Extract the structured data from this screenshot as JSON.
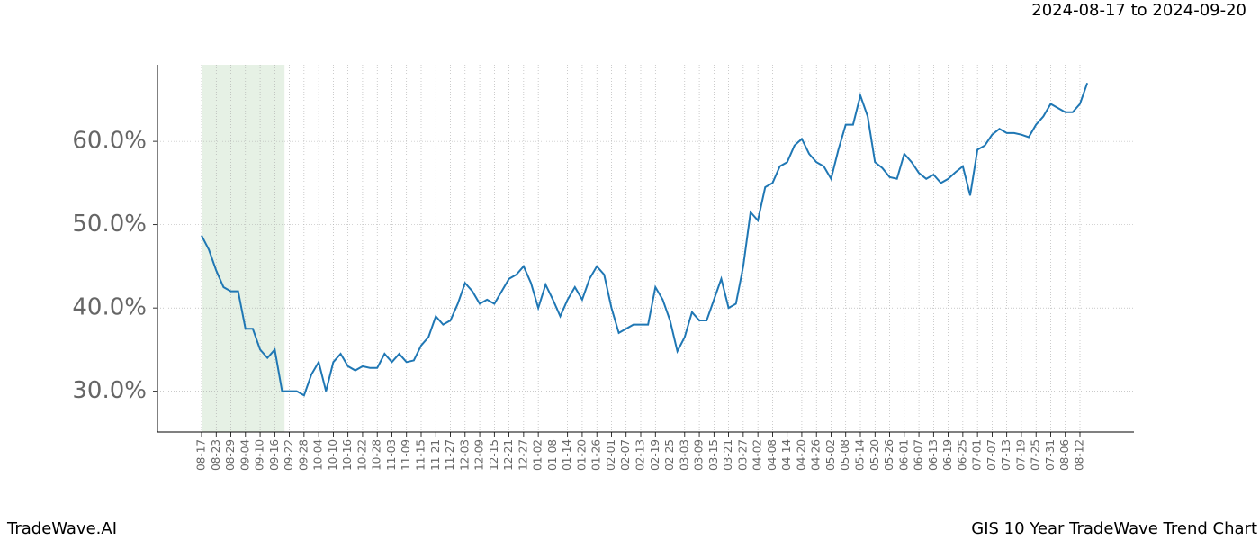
{
  "chart_data": {
    "type": "line",
    "title": "2024-08-17 to 2024-09-20",
    "footer_left": "TradeWave.AI",
    "footer_right": "GIS 10 Year TradeWave Trend Chart",
    "categories": [
      "08-17",
      null,
      "08-23",
      null,
      "08-29",
      null,
      "09-04",
      null,
      "09-10",
      null,
      "09-16",
      null,
      "09-22",
      null,
      "09-28",
      null,
      "10-04",
      null,
      "10-10",
      null,
      "10-16",
      null,
      "10-22",
      null,
      "10-28",
      null,
      "11-03",
      null,
      "11-09",
      null,
      "11-15",
      null,
      "11-21",
      null,
      "11-27",
      null,
      "12-03",
      null,
      "12-09",
      null,
      "12-15",
      null,
      "12-21",
      null,
      "12-27",
      null,
      "01-02",
      null,
      "01-08",
      null,
      "01-14",
      null,
      "01-20",
      null,
      "01-26",
      null,
      "02-01",
      null,
      "02-07",
      null,
      "02-13",
      null,
      "02-19",
      null,
      "02-25",
      null,
      "03-03",
      null,
      "03-09",
      null,
      "03-15",
      null,
      "03-21",
      null,
      "03-27",
      null,
      "04-02",
      null,
      "04-08",
      null,
      "04-14",
      null,
      "04-20",
      null,
      "04-26",
      null,
      "05-02",
      null,
      "05-08",
      null,
      "05-14",
      null,
      "05-20",
      null,
      "05-26",
      null,
      "06-01",
      null,
      "06-07",
      null,
      "06-13",
      null,
      "06-19",
      null,
      "06-25",
      null,
      "07-01",
      null,
      "07-07",
      null,
      "07-13",
      null,
      "07-19",
      null,
      "07-25",
      null,
      "07-31",
      null,
      "08-06",
      null,
      "08-12",
      null
    ],
    "series": [
      {
        "name": "GIS",
        "color": "#1f77b4",
        "values": [
          48.7,
          47,
          44.5,
          42.5,
          42,
          42,
          37.5,
          37.5,
          35,
          34,
          35,
          30,
          30,
          30,
          29.5,
          32,
          33.5,
          30,
          33.5,
          34.5,
          33,
          32.5,
          33,
          32.8,
          32.8,
          34.5,
          33.5,
          34.5,
          33.5,
          33.7,
          35.5,
          36.5,
          39,
          38,
          38.5,
          40.5,
          43,
          42,
          40.5,
          41,
          40.5,
          42,
          43.5,
          44,
          45,
          43,
          40,
          42.8,
          41,
          39,
          41,
          42.5,
          41,
          43.5,
          45,
          44,
          40,
          37,
          37.5,
          38,
          38,
          38,
          42.5,
          41,
          38.5,
          34.8,
          36.5,
          39.5,
          38.5,
          38.5,
          41,
          43.5,
          40,
          40.5,
          45,
          51.5,
          50.5,
          54.5,
          55,
          57,
          57.5,
          59.5,
          60.3,
          58.5,
          57.5,
          57,
          55.5,
          59,
          62,
          62,
          65.5,
          63,
          57.5,
          56.8,
          55.7,
          55.5,
          58.5,
          57.5,
          56.2,
          55.5,
          56,
          55,
          55.5,
          56.3,
          57,
          53.5,
          59,
          59.5,
          60.8,
          61.5,
          61,
          61,
          60.8,
          60.5,
          62,
          63,
          64.5,
          64,
          63.5,
          63.5,
          64.5,
          67
        ]
      }
    ],
    "ylim": [
      25.1,
      69.2
    ],
    "yticks": [
      {
        "value": 30,
        "label": "30.0%"
      },
      {
        "value": 40,
        "label": "40.0%"
      },
      {
        "value": 50,
        "label": "50.0%"
      },
      {
        "value": 60,
        "label": "60.0%"
      }
    ],
    "grid": true,
    "highlight_color": "#d5e8d4"
  }
}
